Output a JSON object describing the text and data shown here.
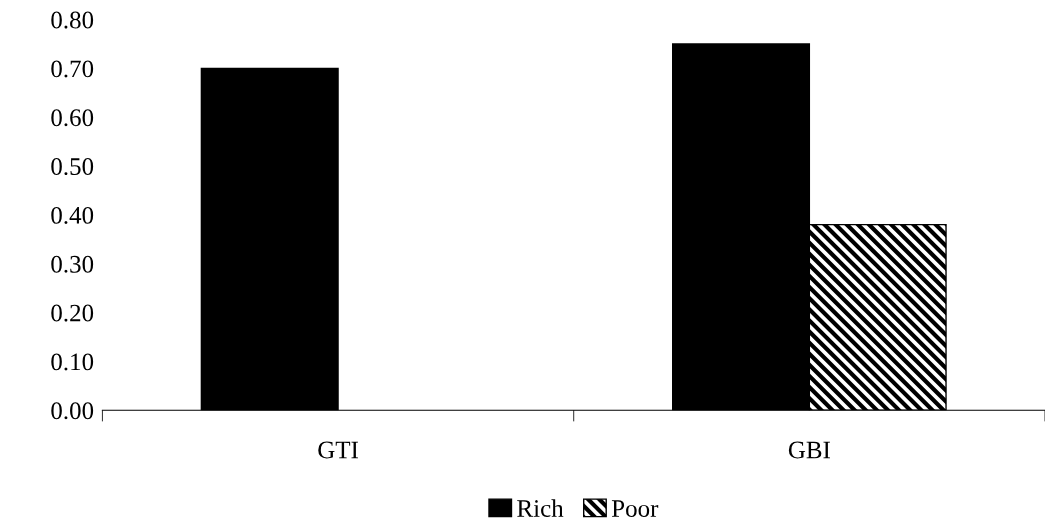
{
  "chart_data": {
    "type": "bar",
    "categories": [
      "GTI",
      "GBI"
    ],
    "series": [
      {
        "name": "Rich",
        "color": "#000000",
        "values": [
          0.7,
          0.75
        ]
      },
      {
        "name": "Poor",
        "color": "#000000",
        "values": [
          null,
          0.38
        ]
      }
    ],
    "ylim": [
      0,
      0.8
    ],
    "yticks": [
      {
        "value": 0,
        "label": "0.00"
      },
      {
        "value": 0.1,
        "label": "0.10"
      },
      {
        "value": 0.2,
        "label": "0.20"
      },
      {
        "value": 0.3,
        "label": "0.30"
      },
      {
        "value": 0.4,
        "label": "0.40"
      },
      {
        "value": 0.5,
        "label": "0.50"
      },
      {
        "value": 0.6,
        "label": "0.60"
      },
      {
        "value": 0.7,
        "label": "0.70"
      },
      {
        "value": 0.8,
        "label": "0.80"
      }
    ],
    "grid": false,
    "legend": "bottom"
  }
}
